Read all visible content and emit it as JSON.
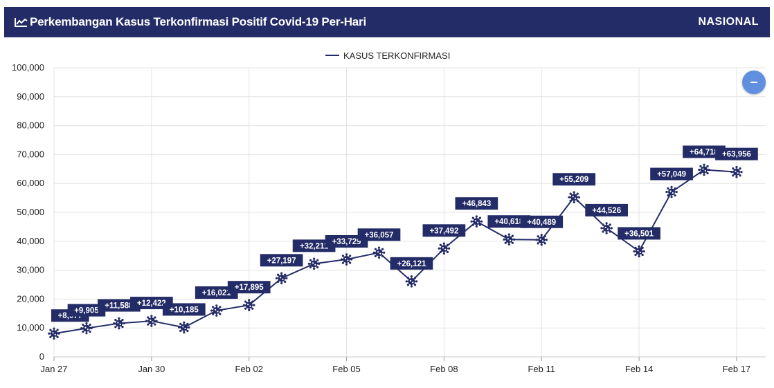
{
  "header": {
    "title": "Perkembangan Kasus Terkonfirmasi Positif Covid-19 Per-Hari",
    "scope": "NASIONAL",
    "icon": "line-chart-icon"
  },
  "zoom_button": {
    "icon": "minus-icon",
    "color": "#5f8fde"
  },
  "chart_data": {
    "type": "line",
    "legend": "KASUS TERKONFIRMASI",
    "legend_position": "top-center",
    "grid": true,
    "line_color": "#232c67",
    "label_bg": "#232c67",
    "ylim": [
      0,
      100000
    ],
    "yticks": [
      0,
      10000,
      20000,
      30000,
      40000,
      50000,
      60000,
      70000,
      80000,
      90000,
      100000
    ],
    "ytick_labels": [
      "0",
      "10,000",
      "20,000",
      "30,000",
      "40,000",
      "50,000",
      "60,000",
      "70,000",
      "80,000",
      "90,000",
      "100,000"
    ],
    "xtick_labels": [
      "Jan 27",
      "Jan 30",
      "Feb 02",
      "Feb 05",
      "Feb 08",
      "Feb 11",
      "Feb 14",
      "Feb 17"
    ],
    "x": [
      "Jan 27",
      "Jan 28",
      "Jan 29",
      "Jan 30",
      "Jan 31",
      "Feb 01",
      "Feb 02",
      "Feb 03",
      "Feb 04",
      "Feb 05",
      "Feb 06",
      "Feb 07",
      "Feb 08",
      "Feb 09",
      "Feb 10",
      "Feb 11",
      "Feb 12",
      "Feb 13",
      "Feb 14",
      "Feb 15",
      "Feb 16",
      "Feb 17"
    ],
    "series": [
      {
        "name": "KASUS TERKONFIRMASI",
        "values": [
          8077,
          9905,
          11588,
          12422,
          10185,
          16021,
          17895,
          27197,
          32211,
          33729,
          36057,
          26121,
          37492,
          46843,
          40618,
          40489,
          55209,
          44526,
          36501,
          57049,
          64718,
          63956
        ],
        "labels": [
          "+8,077",
          "+9,905",
          "+11,588",
          "+12,422",
          "+10,185",
          "+16,021",
          "+17,895",
          "+27,197",
          "+32,211",
          "+33,729",
          "+36,057",
          "+26,121",
          "+37,492",
          "+46,843",
          "+40,618",
          "+40,489",
          "+55,209",
          "+44,526",
          "+36,501",
          "+57,049",
          "+64,718",
          "+63,956"
        ]
      }
    ],
    "marker_icon": "virus-icon"
  }
}
